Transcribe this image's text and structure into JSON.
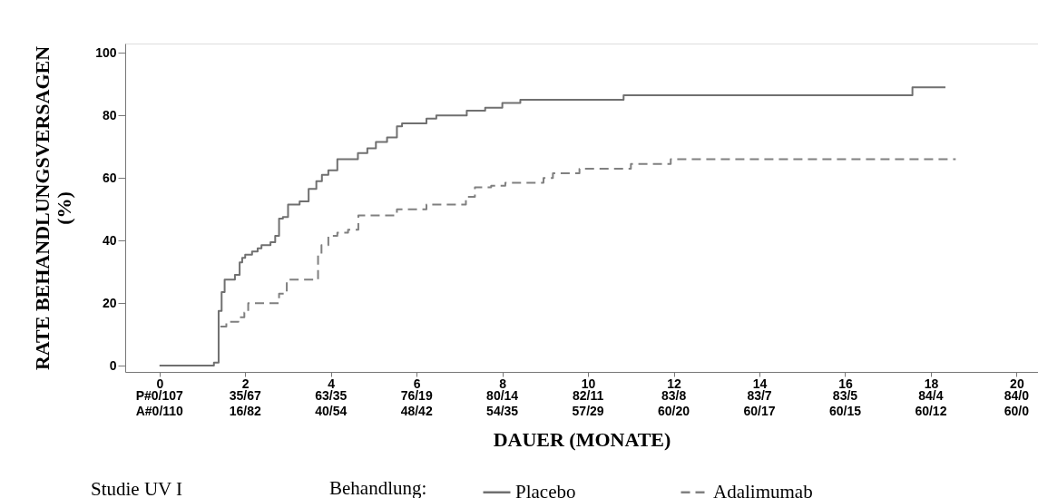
{
  "chart_data": {
    "type": "step",
    "xlabel": "DAUER (MONATE)",
    "ylabel": "RATE BEHANDLUNGSVERSAGEN (%)",
    "legend_title": "Behandlung:",
    "legend": "bottom",
    "grid": false,
    "annotations": [
      "Studie UV I",
      "P#0/107",
      "35/67",
      "63/35",
      "76/19",
      "80/14",
      "82/11",
      "83/8",
      "83/7",
      "83/5",
      "84/4",
      "84/0",
      "A#0/110",
      "16/82",
      "40/54",
      "48/42",
      "54/35",
      "57/29",
      "60/20",
      "60/17",
      "60/15",
      "60/12",
      "60/0"
    ],
    "xlim": [
      -0.8,
      20.5
    ],
    "ylim": [
      -2,
      103
    ],
    "xticks": [
      0,
      2,
      4,
      6,
      8,
      10,
      12,
      14,
      16,
      18,
      20
    ],
    "yticks": [
      0,
      20,
      40,
      60,
      80,
      100
    ],
    "series": [
      {
        "name": "Placebo",
        "color": "#707070",
        "line_style": "solid",
        "x": [
          0,
          1.27,
          1.38,
          1.45,
          1.52,
          1.76,
          1.87,
          1.93,
          2.0,
          2.16,
          2.29,
          2.38,
          2.59,
          2.7,
          2.79,
          2.88,
          3.0,
          3.27,
          3.48,
          3.66,
          3.79,
          3.94,
          4.15,
          4.63,
          4.85,
          5.05,
          5.31,
          5.54,
          5.66,
          6.23,
          6.46,
          7.17,
          7.6,
          8.0,
          8.42,
          10.83,
          17.57,
          18.34
        ],
        "values": [
          0,
          1,
          17.5,
          23.5,
          27.5,
          29,
          33,
          34.5,
          35.5,
          36.5,
          37.5,
          38.5,
          39.5,
          41.5,
          47,
          47.5,
          51.5,
          52.5,
          56.5,
          59,
          61,
          62.5,
          66,
          68,
          69.5,
          71.5,
          73,
          76.5,
          77.5,
          79,
          80,
          81.5,
          82.5,
          84,
          85,
          86.5,
          89,
          89
        ]
      },
      {
        "name": "Adalimumab",
        "color": "#808080",
        "line_style": "dashed",
        "x": [
          1.42,
          1.56,
          1.84,
          1.98,
          2.07,
          2.79,
          2.97,
          3.7,
          3.78,
          3.94,
          4.15,
          4.4,
          4.64,
          5.54,
          6.23,
          7.15,
          7.36,
          7.74,
          8.07,
          8.96,
          9.18,
          9.8,
          11.0,
          11.93,
          18.58
        ],
        "values": [
          12.5,
          14,
          15.5,
          17,
          20,
          23,
          27.5,
          35.5,
          38.5,
          41.5,
          42.5,
          43.5,
          48,
          50,
          51.5,
          54,
          57,
          57.5,
          58.5,
          60,
          61.5,
          63,
          64.5,
          66,
          66
        ]
      }
    ]
  }
}
